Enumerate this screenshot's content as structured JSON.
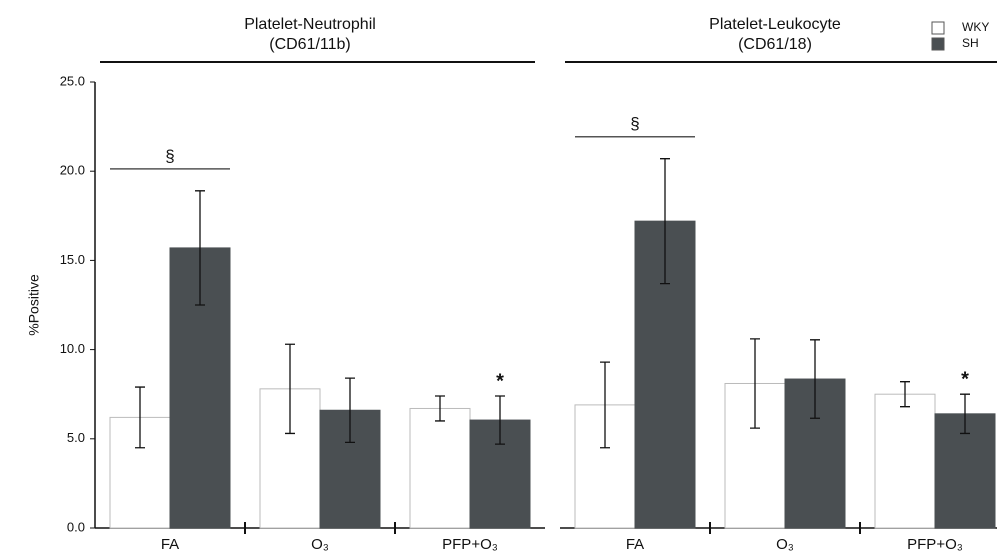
{
  "chart_data": {
    "type": "bar",
    "groups": [
      {
        "label": "Platelet-Neutrophil",
        "sublabel": "(CD61/11b)"
      },
      {
        "label": "Platelet-Leukocyte",
        "sublabel": "(CD61/18)"
      }
    ],
    "categories": [
      "FA",
      "O₃",
      "PFP+O₃",
      "FA",
      "O₃",
      "PFP+O₃"
    ],
    "y_label": "%Positive",
    "ylim": [
      0,
      25
    ],
    "yticks": [
      {
        "value": 0,
        "label": "0.0"
      },
      {
        "value": 5,
        "label": "5.0"
      },
      {
        "value": 10,
        "label": "10.0"
      },
      {
        "value": 15,
        "label": "15.0"
      },
      {
        "value": 20,
        "label": "20.0"
      },
      {
        "value": 25,
        "label": "25.0"
      }
    ],
    "series": [
      {
        "name": "WKY",
        "color": "#ffffff",
        "values": [
          6.2,
          7.8,
          6.7,
          6.9,
          8.1,
          7.5
        ],
        "errors": [
          1.7,
          2.5,
          0.7,
          2.4,
          2.5,
          0.7
        ],
        "markers": [
          null,
          null,
          null,
          null,
          null,
          null
        ]
      },
      {
        "name": "SH",
        "color": "#4a4f52",
        "values": [
          15.7,
          6.6,
          6.05,
          17.2,
          8.35,
          6.4
        ],
        "errors": [
          3.2,
          1.8,
          1.35,
          3.5,
          2.2,
          1.1
        ],
        "markers": [
          null,
          null,
          "*",
          null,
          null,
          "*"
        ]
      }
    ],
    "brackets": [
      "§",
      null,
      null,
      "§",
      null,
      null
    ]
  }
}
